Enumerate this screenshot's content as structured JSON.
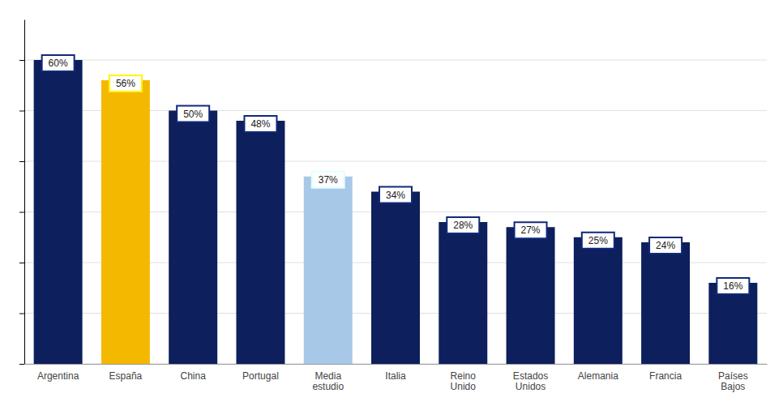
{
  "chart_data": {
    "type": "bar",
    "categories": [
      "Argentina",
      "España",
      "China",
      "Portugal",
      "Media\nestudio",
      "Italia",
      "Reino\nUnido",
      "Estados\nUnidos",
      "Alemania",
      "Francia",
      "Países\nBajos"
    ],
    "values": [
      60,
      56,
      50,
      48,
      37,
      34,
      28,
      27,
      25,
      24,
      16
    ],
    "value_labels": [
      "60%",
      "56%",
      "50%",
      "48%",
      "37%",
      "34%",
      "28%",
      "27%",
      "25%",
      "24%",
      "16%"
    ],
    "colors": [
      "#0d1f5c",
      "#F5B800",
      "#0d1f5c",
      "#0d1f5c",
      "#A8C8E8",
      "#0d1f5c",
      "#0d1f5c",
      "#0d1f5c",
      "#0d1f5c",
      "#0d1f5c",
      "#0d1f5c"
    ],
    "ylim": [
      0,
      68
    ],
    "yticks": [
      0,
      10,
      20,
      30,
      40,
      50,
      60
    ],
    "grid": true,
    "data_labels": true,
    "tick_labels": "x"
  }
}
